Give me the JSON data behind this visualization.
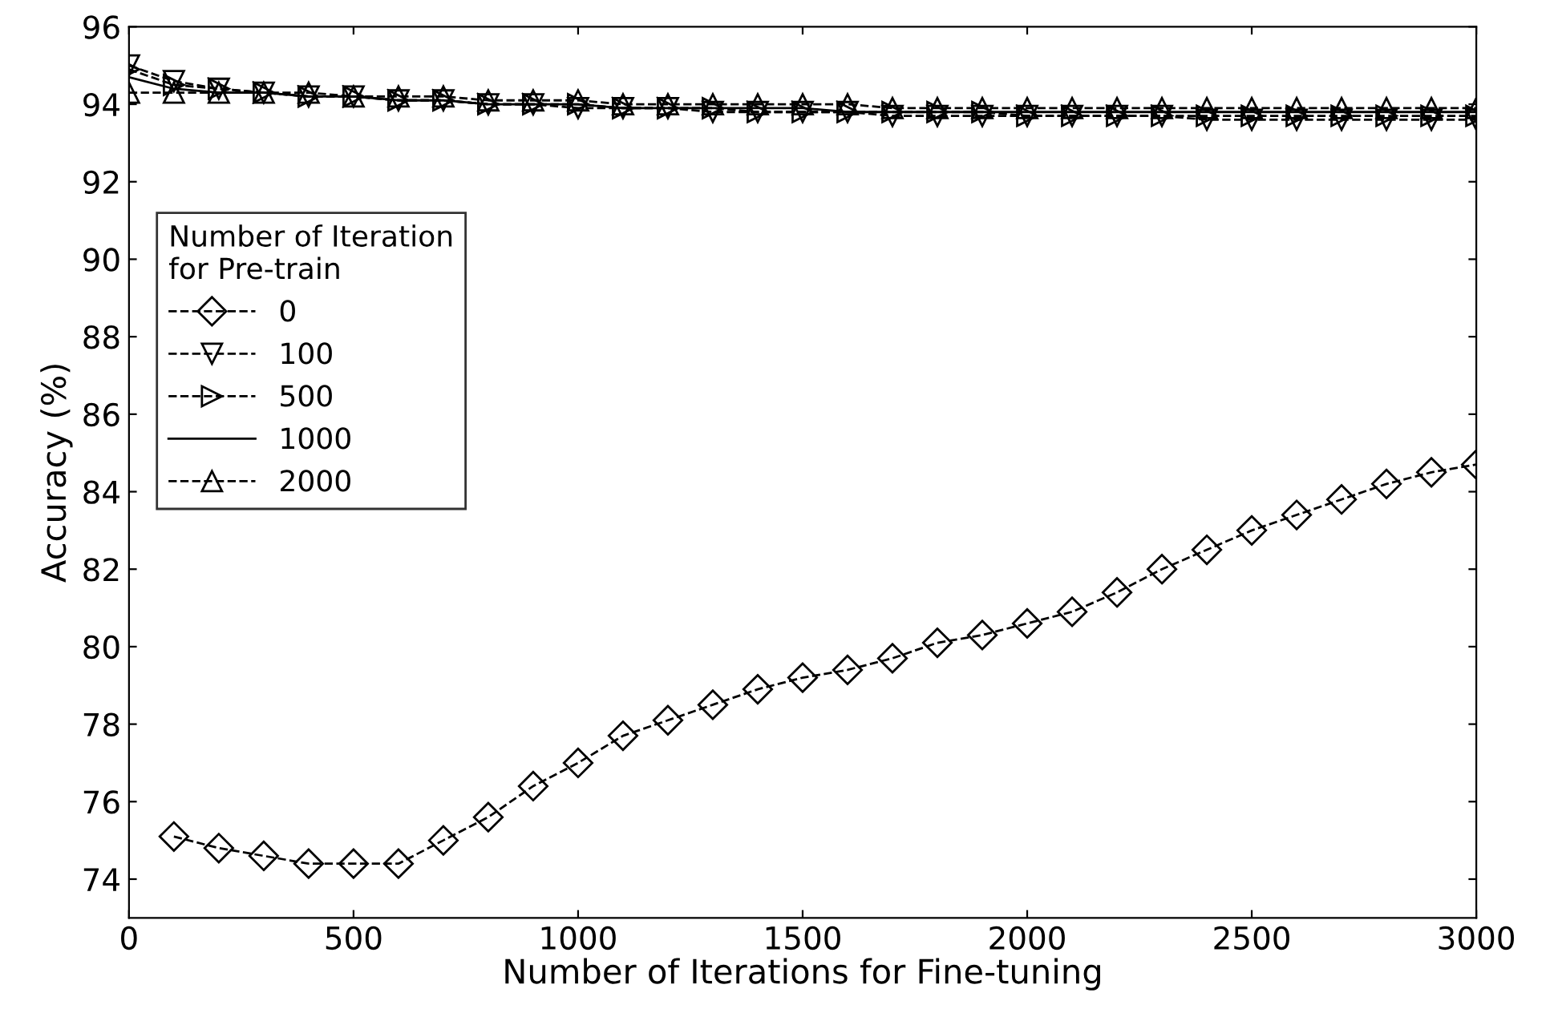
{
  "chart_data": {
    "type": "line",
    "xlabel": "Number of Iterations for Fine-tuning",
    "ylabel": "Accuracy (%)",
    "legend_title": "Number of Iteration\nfor Pre-train",
    "legend": "left",
    "grid": false,
    "xlim": [
      0,
      3000
    ],
    "xticks": [
      0,
      500,
      1000,
      1500,
      2000,
      2500,
      3000
    ],
    "ylim": [
      73,
      96
    ],
    "yticks": [
      74,
      76,
      78,
      80,
      82,
      84,
      86,
      88,
      90,
      92,
      94,
      96
    ],
    "x": [
      0,
      100,
      200,
      300,
      400,
      500,
      600,
      700,
      800,
      900,
      1000,
      1100,
      1200,
      1300,
      1400,
      1500,
      1600,
      1700,
      1800,
      1900,
      2000,
      2100,
      2200,
      2300,
      2400,
      2500,
      2600,
      2700,
      2800,
      2900,
      3000
    ],
    "series": [
      {
        "name": "0",
        "color": "#000000",
        "marker": "diamond",
        "line_style": "dashed",
        "x": [
          100,
          200,
          300,
          400,
          500,
          600,
          700,
          800,
          900,
          1000,
          1100,
          1200,
          1300,
          1400,
          1500,
          1600,
          1700,
          1800,
          1900,
          2000,
          2100,
          2200,
          2300,
          2400,
          2500,
          2600,
          2700,
          2800,
          2900,
          3000
        ],
        "values": [
          75.1,
          74.8,
          74.6,
          74.4,
          74.4,
          74.4,
          75.0,
          75.6,
          76.4,
          77.0,
          77.7,
          78.1,
          78.5,
          78.9,
          79.2,
          79.4,
          79.7,
          80.1,
          80.3,
          80.6,
          80.9,
          81.4,
          82.0,
          82.5,
          83.0,
          83.4,
          83.8,
          84.2,
          84.5,
          84.7
        ]
      },
      {
        "name": "100",
        "color": "#000000",
        "marker": "triangle_down",
        "line_style": "dashed",
        "values": [
          95.0,
          94.6,
          94.4,
          94.3,
          94.2,
          94.2,
          94.1,
          94.1,
          94.0,
          94.0,
          93.9,
          93.9,
          93.9,
          93.8,
          93.8,
          93.8,
          93.8,
          93.7,
          93.7,
          93.7,
          93.7,
          93.7,
          93.7,
          93.7,
          93.6,
          93.6,
          93.6,
          93.6,
          93.6,
          93.6,
          93.6
        ]
      },
      {
        "name": "500",
        "color": "#000000",
        "marker": "triangle_right",
        "line_style": "dashed",
        "values": [
          94.9,
          94.5,
          94.4,
          94.3,
          94.2,
          94.2,
          94.1,
          94.1,
          94.0,
          94.0,
          94.0,
          93.9,
          93.9,
          93.9,
          93.8,
          93.8,
          93.8,
          93.8,
          93.8,
          93.8,
          93.7,
          93.7,
          93.7,
          93.7,
          93.7,
          93.7,
          93.7,
          93.7,
          93.7,
          93.7,
          93.7
        ]
      },
      {
        "name": "1000",
        "color": "#000000",
        "marker": "none",
        "line_style": "solid",
        "values": [
          94.7,
          94.4,
          94.3,
          94.3,
          94.2,
          94.2,
          94.1,
          94.1,
          94.0,
          94.0,
          94.0,
          93.9,
          93.9,
          93.9,
          93.9,
          93.9,
          93.8,
          93.8,
          93.8,
          93.8,
          93.8,
          93.8,
          93.8,
          93.8,
          93.8,
          93.8,
          93.8,
          93.8,
          93.8,
          93.8,
          93.8
        ]
      },
      {
        "name": "2000",
        "color": "#000000",
        "marker": "triangle",
        "line_style": "dashed",
        "values": [
          94.3,
          94.3,
          94.3,
          94.3,
          94.3,
          94.2,
          94.2,
          94.2,
          94.1,
          94.1,
          94.1,
          94.0,
          94.0,
          94.0,
          94.0,
          94.0,
          94.0,
          93.9,
          93.9,
          93.9,
          93.9,
          93.9,
          93.9,
          93.9,
          93.9,
          93.9,
          93.9,
          93.9,
          93.9,
          93.9,
          93.9
        ]
      }
    ]
  }
}
